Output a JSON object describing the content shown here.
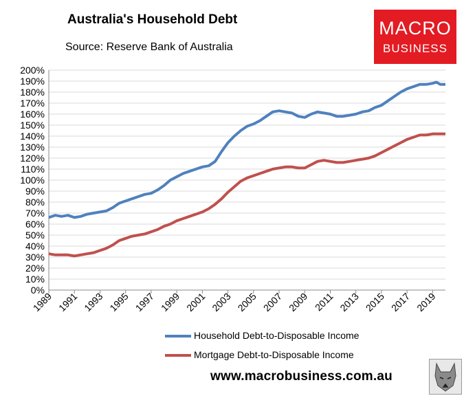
{
  "header": {
    "title": "Australia's Household Debt",
    "source": "Source: Reserve Bank of Australia"
  },
  "logo": {
    "line1": "MACRO",
    "line2": "BUSINESS"
  },
  "footer": {
    "url": "www.macrobusiness.com.au"
  },
  "colors": {
    "household": "#4f81bd",
    "mortgage": "#c0504d",
    "grid": "#d9d9d9"
  },
  "chart_data": {
    "type": "line",
    "ylim": [
      0,
      200
    ],
    "xlim": [
      1989,
      2020
    ],
    "ytick_step": 10,
    "ytick_suffix": "%",
    "xticks": [
      "1989",
      "1991",
      "1993",
      "1995",
      "1997",
      "1999",
      "2001",
      "2003",
      "2005",
      "2007",
      "2009",
      "2011",
      "2013",
      "2015",
      "2017",
      "2019"
    ],
    "legend_position": "bottom",
    "grid": "horizontal",
    "series": [
      {
        "name": "Household Debt-to-Disposable Income",
        "color": "#4f81bd",
        "points": [
          [
            1989,
            66
          ],
          [
            1989.5,
            68
          ],
          [
            1990,
            67
          ],
          [
            1990.5,
            68
          ],
          [
            1991,
            66
          ],
          [
            1991.5,
            67
          ],
          [
            1992,
            69
          ],
          [
            1992.5,
            70
          ],
          [
            1993,
            71
          ],
          [
            1993.5,
            72
          ],
          [
            1994,
            75
          ],
          [
            1994.5,
            79
          ],
          [
            1995,
            81
          ],
          [
            1995.5,
            83
          ],
          [
            1996,
            85
          ],
          [
            1996.5,
            87
          ],
          [
            1997,
            88
          ],
          [
            1997.5,
            91
          ],
          [
            1998,
            95
          ],
          [
            1998.5,
            100
          ],
          [
            1999,
            103
          ],
          [
            1999.5,
            106
          ],
          [
            2000,
            108
          ],
          [
            2000.5,
            110
          ],
          [
            2001,
            112
          ],
          [
            2001.5,
            113
          ],
          [
            2002,
            117
          ],
          [
            2002.5,
            126
          ],
          [
            2003,
            134
          ],
          [
            2003.5,
            140
          ],
          [
            2004,
            145
          ],
          [
            2004.5,
            149
          ],
          [
            2005,
            151
          ],
          [
            2005.5,
            154
          ],
          [
            2006,
            158
          ],
          [
            2006.5,
            162
          ],
          [
            2007,
            163
          ],
          [
            2007.5,
            162
          ],
          [
            2008,
            161
          ],
          [
            2008.5,
            158
          ],
          [
            2009,
            157
          ],
          [
            2009.5,
            160
          ],
          [
            2010,
            162
          ],
          [
            2010.5,
            161
          ],
          [
            2011,
            160
          ],
          [
            2011.5,
            158
          ],
          [
            2012,
            158
          ],
          [
            2012.5,
            159
          ],
          [
            2013,
            160
          ],
          [
            2013.5,
            162
          ],
          [
            2014,
            163
          ],
          [
            2014.5,
            166
          ],
          [
            2015,
            168
          ],
          [
            2015.5,
            172
          ],
          [
            2016,
            176
          ],
          [
            2016.5,
            180
          ],
          [
            2017,
            183
          ],
          [
            2017.5,
            185
          ],
          [
            2018,
            187
          ],
          [
            2018.5,
            187
          ],
          [
            2019,
            188
          ],
          [
            2019.3,
            189
          ],
          [
            2019.6,
            187
          ],
          [
            2020,
            187
          ]
        ]
      },
      {
        "name": "Mortgage Debt-to-Disposable Income",
        "color": "#c0504d",
        "points": [
          [
            1989,
            33
          ],
          [
            1989.5,
            32
          ],
          [
            1990,
            32
          ],
          [
            1990.5,
            32
          ],
          [
            1991,
            31
          ],
          [
            1991.5,
            32
          ],
          [
            1992,
            33
          ],
          [
            1992.5,
            34
          ],
          [
            1993,
            36
          ],
          [
            1993.5,
            38
          ],
          [
            1994,
            41
          ],
          [
            1994.5,
            45
          ],
          [
            1995,
            47
          ],
          [
            1995.5,
            49
          ],
          [
            1996,
            50
          ],
          [
            1996.5,
            51
          ],
          [
            1997,
            53
          ],
          [
            1997.5,
            55
          ],
          [
            1998,
            58
          ],
          [
            1998.5,
            60
          ],
          [
            1999,
            63
          ],
          [
            1999.5,
            65
          ],
          [
            2000,
            67
          ],
          [
            2000.5,
            69
          ],
          [
            2001,
            71
          ],
          [
            2001.5,
            74
          ],
          [
            2002,
            78
          ],
          [
            2002.5,
            83
          ],
          [
            2003,
            89
          ],
          [
            2003.5,
            94
          ],
          [
            2004,
            99
          ],
          [
            2004.5,
            102
          ],
          [
            2005,
            104
          ],
          [
            2005.5,
            106
          ],
          [
            2006,
            108
          ],
          [
            2006.5,
            110
          ],
          [
            2007,
            111
          ],
          [
            2007.5,
            112
          ],
          [
            2008,
            112
          ],
          [
            2008.5,
            111
          ],
          [
            2009,
            111
          ],
          [
            2009.5,
            114
          ],
          [
            2010,
            117
          ],
          [
            2010.5,
            118
          ],
          [
            2011,
            117
          ],
          [
            2011.5,
            116
          ],
          [
            2012,
            116
          ],
          [
            2012.5,
            117
          ],
          [
            2013,
            118
          ],
          [
            2013.5,
            119
          ],
          [
            2014,
            120
          ],
          [
            2014.5,
            122
          ],
          [
            2015,
            125
          ],
          [
            2015.5,
            128
          ],
          [
            2016,
            131
          ],
          [
            2016.5,
            134
          ],
          [
            2017,
            137
          ],
          [
            2017.5,
            139
          ],
          [
            2018,
            141
          ],
          [
            2018.5,
            141
          ],
          [
            2019,
            142
          ],
          [
            2019.5,
            142
          ],
          [
            2020,
            142
          ]
        ]
      }
    ]
  }
}
